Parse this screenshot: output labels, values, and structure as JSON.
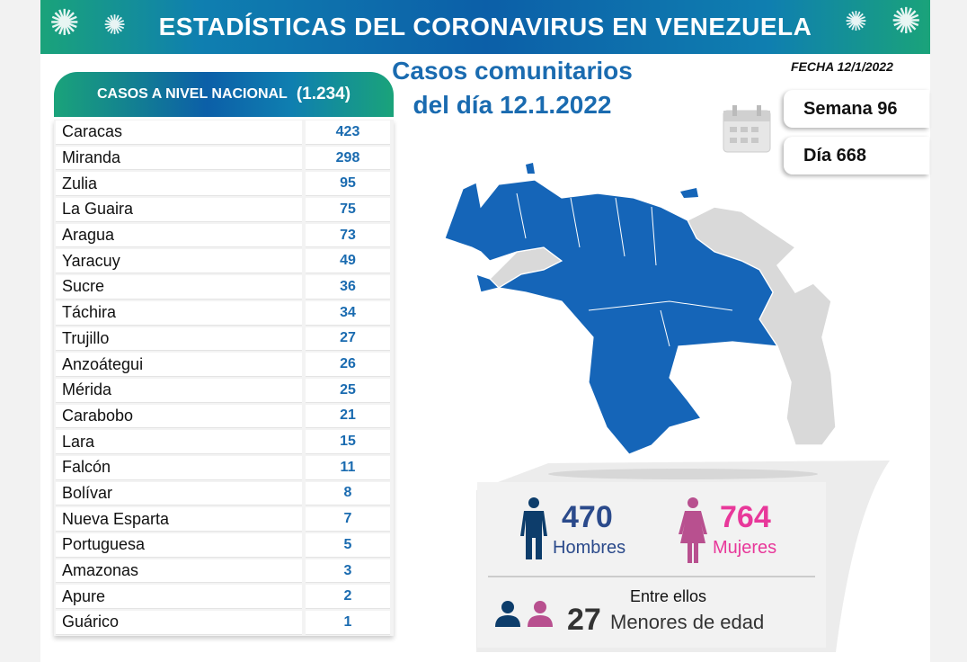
{
  "header": {
    "title": "ESTADÍSTICAS DEL CORONAVIRUS EN VENEZUELA"
  },
  "main": {
    "title_line1": "Casos comunitarios",
    "title_line2": "del día 12.1.2022",
    "fecha": "FECHA 12/1/2022",
    "semana": "Semana 96",
    "dia": "Día 668"
  },
  "table": {
    "header_label": "CASOS A NIVEL NACIONAL",
    "header_total": "(1.234)",
    "rows": [
      {
        "estado": "Caracas",
        "casos": "423"
      },
      {
        "estado": "Miranda",
        "casos": "298"
      },
      {
        "estado": "Zulia",
        "casos": "95"
      },
      {
        "estado": "La Guaira",
        "casos": "75"
      },
      {
        "estado": "Aragua",
        "casos": "73"
      },
      {
        "estado": "Yaracuy",
        "casos": "49"
      },
      {
        "estado": "Sucre",
        "casos": "36"
      },
      {
        "estado": "Táchira",
        "casos": "34"
      },
      {
        "estado": "Trujillo",
        "casos": "27"
      },
      {
        "estado": "Anzoátegui",
        "casos": "26"
      },
      {
        "estado": "Mérida",
        "casos": "25"
      },
      {
        "estado": "Carabobo",
        "casos": "21"
      },
      {
        "estado": "Lara",
        "casos": "15"
      },
      {
        "estado": "Falcón",
        "casos": "11"
      },
      {
        "estado": "Bolívar",
        "casos": "8"
      },
      {
        "estado": "Nueva Esparta",
        "casos": "7"
      },
      {
        "estado": "Portuguesa",
        "casos": "5"
      },
      {
        "estado": "Amazonas",
        "casos": "3"
      },
      {
        "estado": "Apure",
        "casos": "2"
      },
      {
        "estado": "Guárico",
        "casos": "1"
      }
    ]
  },
  "stats": {
    "hombres_value": "470",
    "hombres_label": "Hombres",
    "mujeres_value": "764",
    "mujeres_label": "Mujeres",
    "entre_ellos": "Entre ellos",
    "menores_value": "27",
    "menores_label": "Menores de edad"
  },
  "colors": {
    "blue_map": "#1565b8",
    "gray_map": "#d9d9d9",
    "hombres": "#2b4a8b",
    "mujeres": "#e8389a",
    "table_value": "#1a6bb0"
  },
  "icons": [
    "virus-icon",
    "calendar-icon",
    "man-icon",
    "woman-icon",
    "person-icon"
  ]
}
